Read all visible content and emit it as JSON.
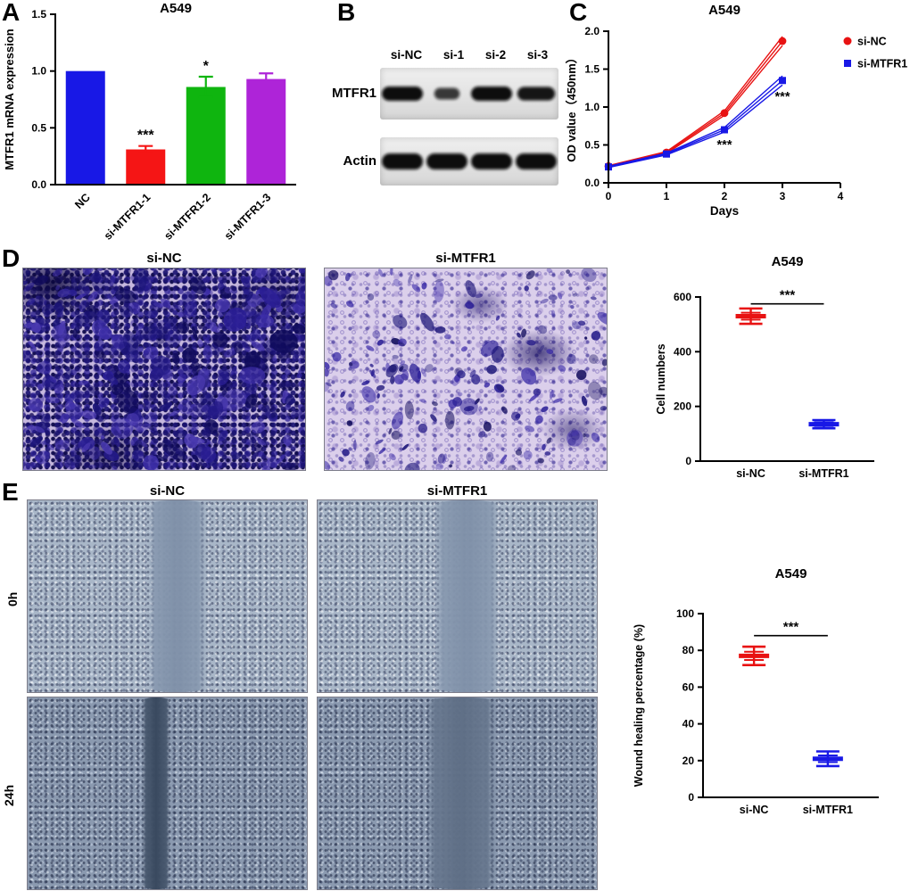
{
  "figure": {
    "panels": {
      "A": {
        "label": "A"
      },
      "B": {
        "label": "B",
        "lane_labels": [
          "si-NC",
          "si-1",
          "si-2",
          "si-3"
        ],
        "rows": [
          {
            "label": "MTFR1",
            "band_scale": [
              1.0,
              0.62,
              1.0,
              0.92
            ],
            "band_opacity": [
              1,
              0.8,
              1,
              0.96
            ]
          },
          {
            "label": "Actin",
            "band_scale": [
              1,
              1,
              1,
              1
            ],
            "band_opacity": [
              1,
              1,
              1,
              1
            ]
          }
        ]
      },
      "C": {
        "label": "C"
      },
      "D": {
        "label": "D",
        "image_labels": [
          "si-NC",
          "si-MTFR1"
        ]
      },
      "E": {
        "label": "E",
        "col_labels": [
          "si-NC",
          "si-MTFR1"
        ],
        "row_labels": [
          "0h",
          "24h"
        ]
      }
    }
  },
  "chart_data": [
    {
      "id": "panelA",
      "type": "bar",
      "title": "A549",
      "ylabel": "MTFR1 mRNA expression",
      "categories": [
        "NC",
        "si-MTFR1-1",
        "si-MTFR1-2",
        "si-MTFR1-3"
      ],
      "values": [
        1.0,
        0.31,
        0.86,
        0.93
      ],
      "errors": [
        0,
        0.03,
        0.09,
        0.05
      ],
      "bar_colors": [
        "#1818e6",
        "#f51515",
        "#0fb50f",
        "#ae24d8"
      ],
      "significance": [
        "",
        "***",
        "*",
        ""
      ],
      "ylim": [
        0,
        1.5
      ],
      "yticks": [
        0,
        0.5,
        1.0,
        1.5
      ],
      "ytick_labels": [
        "0.0",
        "0.5",
        "1.0",
        "1.5"
      ]
    },
    {
      "id": "panelC",
      "type": "line",
      "title": "A549",
      "xlabel": "Days",
      "ylabel": "OD value（450nm）",
      "x": [
        0,
        1,
        2,
        3
      ],
      "xlim": [
        0,
        4
      ],
      "ylim": [
        0,
        2.0
      ],
      "xticks": [
        0,
        1,
        2,
        3,
        4
      ],
      "xtick_labels": [
        "0",
        "1",
        "2",
        "3",
        "4"
      ],
      "yticks": [
        0,
        0.5,
        1.0,
        1.5,
        2.0
      ],
      "ytick_labels": [
        "0.0",
        "0.5",
        "1.0",
        "1.5",
        "2.0"
      ],
      "replicate_spread": [
        0.008,
        0.012,
        0.03,
        0.06
      ],
      "series": [
        {
          "name": "si-NC",
          "color": "#e81212",
          "marker": "circle",
          "values": [
            0.22,
            0.4,
            0.92,
            1.87
          ]
        },
        {
          "name": "si-MTFR1",
          "color": "#1818e6",
          "marker": "square",
          "values": [
            0.21,
            0.38,
            0.7,
            1.35
          ]
        }
      ],
      "annotations": [
        {
          "text": "***",
          "x": 2,
          "y": 0.45
        },
        {
          "text": "***",
          "x": 3,
          "y": 1.08
        }
      ],
      "legend_position": "right"
    },
    {
      "id": "panelD",
      "type": "scatter",
      "title": "A549",
      "ylabel": "Cell numbers",
      "categories": [
        "si-NC",
        "si-MTFR1"
      ],
      "values": [
        530,
        135
      ],
      "errors": [
        28,
        15
      ],
      "colors": [
        "#e81212",
        "#1818e6"
      ],
      "significance": "***",
      "sig_y": 575,
      "ylim": [
        0,
        600
      ],
      "yticks": [
        0,
        200,
        400,
        600
      ],
      "ytick_labels": [
        "0",
        "200",
        "400",
        "600"
      ]
    },
    {
      "id": "panelE",
      "type": "scatter",
      "title": "A549",
      "ylabel": "Wound healing percentage (%)",
      "categories": [
        "si-NC",
        "si-MTFR1"
      ],
      "values": [
        77,
        21
      ],
      "errors": [
        5,
        4
      ],
      "colors": [
        "#e81212",
        "#1818e6"
      ],
      "significance": "***",
      "sig_y": 88,
      "ylim": [
        0,
        100
      ],
      "yticks": [
        0,
        20,
        40,
        60,
        80,
        100
      ],
      "ytick_labels": [
        "0",
        "20",
        "40",
        "60",
        "80",
        "100"
      ]
    }
  ]
}
